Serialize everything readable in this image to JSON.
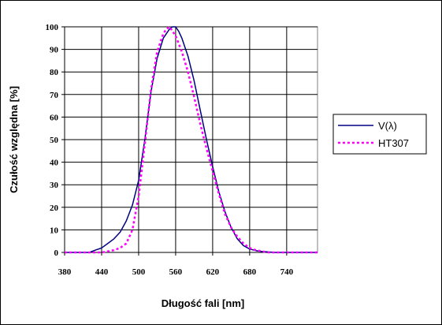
{
  "chart_data": {
    "type": "line",
    "xlabel": "Długość fali [nm]",
    "ylabel": "Czułość względna [%]",
    "xlim": [
      380,
      790
    ],
    "ylim": [
      0,
      100
    ],
    "x_ticks": [
      380,
      440,
      500,
      560,
      620,
      680,
      740
    ],
    "y_ticks": [
      0,
      10,
      20,
      30,
      40,
      50,
      60,
      70,
      80,
      90,
      100
    ],
    "grid": "horizontal",
    "legend_position": "right",
    "series": [
      {
        "name": "V(λ)",
        "color": "#000080",
        "style": "solid",
        "x": [
          380,
          420,
          430,
          440,
          450,
          460,
          470,
          480,
          490,
          500,
          510,
          520,
          530,
          540,
          550,
          555,
          560,
          565,
          570,
          580,
          590,
          600,
          610,
          620,
          630,
          640,
          650,
          660,
          670,
          680,
          690,
          700,
          710,
          720,
          790
        ],
        "y": [
          0,
          0,
          1,
          2,
          4,
          6,
          9,
          14,
          21,
          32,
          50,
          71,
          86,
          95,
          99,
          100,
          100,
          98,
          95,
          87,
          76,
          63,
          50,
          38,
          27,
          18,
          11,
          6,
          3,
          1.5,
          0.8,
          0.4,
          0.2,
          0,
          0
        ]
      },
      {
        "name": "HT307",
        "color": "#ff00ff",
        "style": "dotted",
        "x": [
          380,
          440,
          450,
          460,
          470,
          480,
          490,
          500,
          510,
          520,
          530,
          540,
          545,
          550,
          555,
          560,
          570,
          580,
          590,
          600,
          610,
          620,
          630,
          640,
          650,
          660,
          670,
          680,
          690,
          700,
          710,
          790
        ],
        "y": [
          0,
          0,
          0.5,
          1,
          2,
          4,
          10,
          25,
          48,
          72,
          89,
          97,
          99,
          100,
          98,
          96,
          89,
          80,
          69,
          57,
          46,
          36,
          26,
          17,
          11,
          7,
          4,
          2,
          1,
          0.5,
          0,
          0
        ]
      }
    ]
  }
}
